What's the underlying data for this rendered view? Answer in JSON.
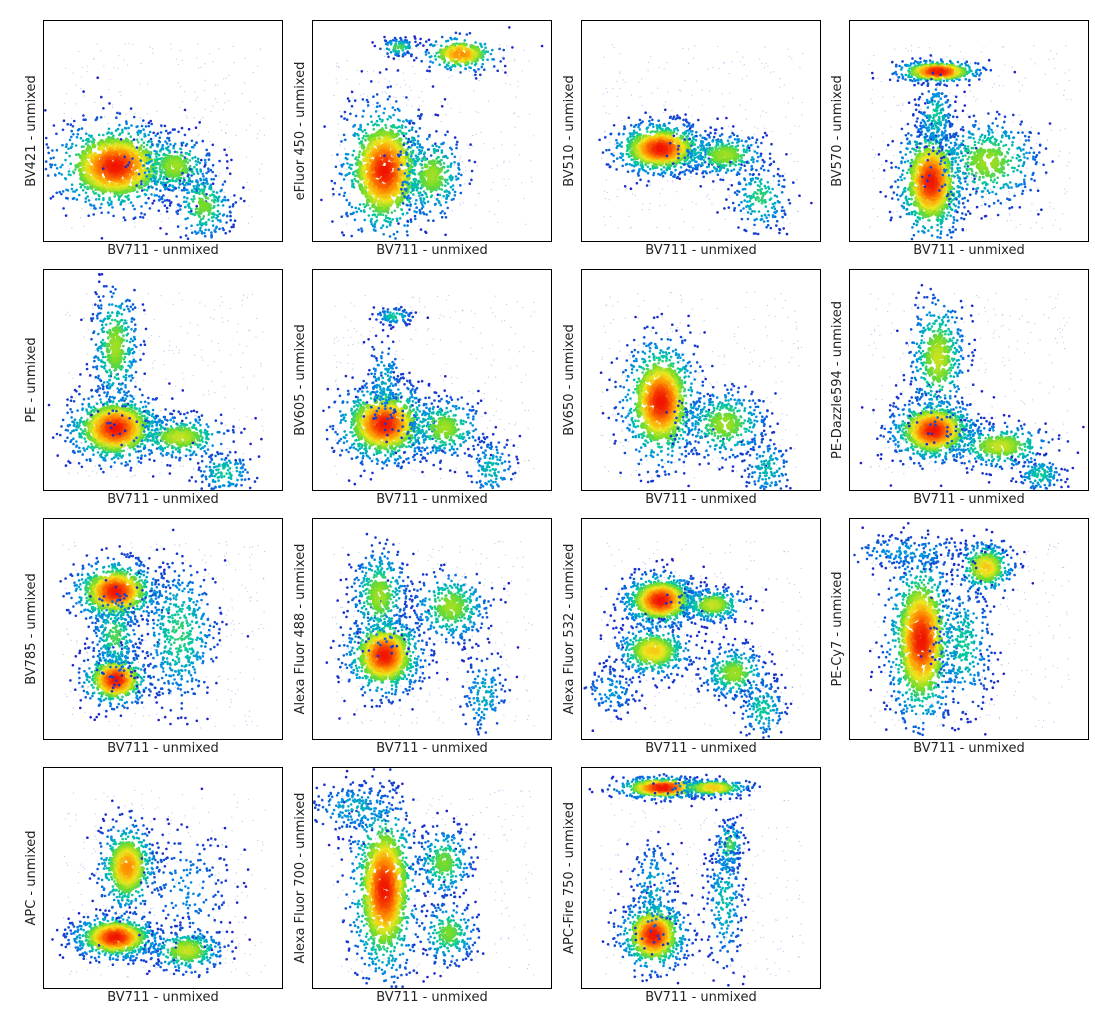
{
  "chart_data": [
    {
      "type": "scatter",
      "xlabel": "BV711 - unmixed",
      "ylabel": "BV421 - unmixed",
      "populations": [
        {
          "x": 0.3,
          "y": 0.66,
          "sx": 0.13,
          "sy": 0.1,
          "n": 900,
          "peak": 1.0
        },
        {
          "x": 0.55,
          "y": 0.66,
          "sx": 0.08,
          "sy": 0.07,
          "n": 320,
          "peak": 0.6
        },
        {
          "x": 0.67,
          "y": 0.84,
          "sx": 0.06,
          "sy": 0.08,
          "n": 260,
          "peak": 0.55
        }
      ]
    },
    {
      "type": "scatter",
      "xlabel": "BV711 - unmixed",
      "ylabel": "eFluor 450 - unmixed",
      "populations": [
        {
          "x": 0.3,
          "y": 0.68,
          "sx": 0.09,
          "sy": 0.15,
          "n": 900,
          "peak": 1.0
        },
        {
          "x": 0.5,
          "y": 0.7,
          "sx": 0.07,
          "sy": 0.1,
          "n": 320,
          "peak": 0.6
        },
        {
          "x": 0.36,
          "y": 0.12,
          "sx": 0.04,
          "sy": 0.02,
          "n": 110,
          "peak": 0.5
        },
        {
          "x": 0.62,
          "y": 0.15,
          "sx": 0.08,
          "sy": 0.04,
          "n": 240,
          "peak": 0.85
        }
      ]
    },
    {
      "type": "scatter",
      "xlabel": "BV711 - unmixed",
      "ylabel": "BV510 - unmixed",
      "populations": [
        {
          "x": 0.33,
          "y": 0.58,
          "sx": 0.1,
          "sy": 0.06,
          "n": 800,
          "peak": 1.0
        },
        {
          "x": 0.6,
          "y": 0.61,
          "sx": 0.09,
          "sy": 0.05,
          "n": 320,
          "peak": 0.6
        },
        {
          "x": 0.75,
          "y": 0.8,
          "sx": 0.06,
          "sy": 0.08,
          "n": 200,
          "peak": 0.45
        }
      ]
    },
    {
      "type": "scatter",
      "xlabel": "BV711 - unmixed",
      "ylabel": "BV570 - unmixed",
      "populations": [
        {
          "x": 0.37,
          "y": 0.23,
          "sx": 0.09,
          "sy": 0.025,
          "n": 400,
          "peak": 1.0
        },
        {
          "x": 0.34,
          "y": 0.73,
          "sx": 0.07,
          "sy": 0.13,
          "n": 850,
          "peak": 1.0
        },
        {
          "x": 0.58,
          "y": 0.64,
          "sx": 0.11,
          "sy": 0.1,
          "n": 420,
          "peak": 0.6
        },
        {
          "x": 0.36,
          "y": 0.43,
          "sx": 0.04,
          "sy": 0.08,
          "n": 200,
          "peak": 0.4
        }
      ]
    },
    {
      "type": "scatter",
      "xlabel": "BV711 - unmixed",
      "ylabel": "PE - unmixed",
      "populations": [
        {
          "x": 0.3,
          "y": 0.72,
          "sx": 0.1,
          "sy": 0.08,
          "n": 850,
          "peak": 1.0
        },
        {
          "x": 0.3,
          "y": 0.35,
          "sx": 0.05,
          "sy": 0.14,
          "n": 380,
          "peak": 0.6
        },
        {
          "x": 0.57,
          "y": 0.76,
          "sx": 0.1,
          "sy": 0.05,
          "n": 320,
          "peak": 0.65
        },
        {
          "x": 0.76,
          "y": 0.92,
          "sx": 0.06,
          "sy": 0.05,
          "n": 150,
          "peak": 0.4
        }
      ]
    },
    {
      "type": "scatter",
      "xlabel": "BV711 - unmixed",
      "ylabel": "BV605 - unmixed",
      "populations": [
        {
          "x": 0.3,
          "y": 0.7,
          "sx": 0.1,
          "sy": 0.09,
          "n": 900,
          "peak": 1.0
        },
        {
          "x": 0.55,
          "y": 0.72,
          "sx": 0.08,
          "sy": 0.07,
          "n": 320,
          "peak": 0.6
        },
        {
          "x": 0.34,
          "y": 0.21,
          "sx": 0.04,
          "sy": 0.02,
          "n": 100,
          "peak": 0.4
        },
        {
          "x": 0.3,
          "y": 0.5,
          "sx": 0.04,
          "sy": 0.1,
          "n": 150,
          "peak": 0.3
        },
        {
          "x": 0.75,
          "y": 0.9,
          "sx": 0.05,
          "sy": 0.07,
          "n": 150,
          "peak": 0.35
        }
      ]
    },
    {
      "type": "scatter",
      "xlabel": "BV711 - unmixed",
      "ylabel": "BV650 - unmixed",
      "populations": [
        {
          "x": 0.33,
          "y": 0.6,
          "sx": 0.08,
          "sy": 0.14,
          "n": 900,
          "peak": 1.0
        },
        {
          "x": 0.6,
          "y": 0.7,
          "sx": 0.09,
          "sy": 0.08,
          "n": 380,
          "peak": 0.6
        },
        {
          "x": 0.78,
          "y": 0.9,
          "sx": 0.05,
          "sy": 0.07,
          "n": 150,
          "peak": 0.35
        }
      ]
    },
    {
      "type": "scatter",
      "xlabel": "BV711 - unmixed",
      "ylabel": "PE-Dazzle594 - unmixed",
      "populations": [
        {
          "x": 0.35,
          "y": 0.73,
          "sx": 0.09,
          "sy": 0.07,
          "n": 800,
          "peak": 1.0
        },
        {
          "x": 0.37,
          "y": 0.4,
          "sx": 0.06,
          "sy": 0.14,
          "n": 420,
          "peak": 0.65
        },
        {
          "x": 0.63,
          "y": 0.8,
          "sx": 0.11,
          "sy": 0.05,
          "n": 340,
          "peak": 0.65
        },
        {
          "x": 0.8,
          "y": 0.93,
          "sx": 0.05,
          "sy": 0.04,
          "n": 150,
          "peak": 0.4
        }
      ]
    },
    {
      "type": "scatter",
      "xlabel": "BV711 - unmixed",
      "ylabel": "BV785 - unmixed",
      "populations": [
        {
          "x": 0.3,
          "y": 0.33,
          "sx": 0.09,
          "sy": 0.07,
          "n": 650,
          "peak": 1.0
        },
        {
          "x": 0.3,
          "y": 0.73,
          "sx": 0.07,
          "sy": 0.06,
          "n": 500,
          "peak": 1.0
        },
        {
          "x": 0.3,
          "y": 0.53,
          "sx": 0.05,
          "sy": 0.09,
          "n": 300,
          "peak": 0.5
        },
        {
          "x": 0.57,
          "y": 0.52,
          "sx": 0.08,
          "sy": 0.16,
          "n": 500,
          "peak": 0.45
        }
      ]
    },
    {
      "type": "scatter",
      "xlabel": "BV711 - unmixed",
      "ylabel": "Alexa Fluor 488 - unmixed",
      "populations": [
        {
          "x": 0.3,
          "y": 0.62,
          "sx": 0.08,
          "sy": 0.09,
          "n": 750,
          "peak": 1.0
        },
        {
          "x": 0.28,
          "y": 0.35,
          "sx": 0.06,
          "sy": 0.11,
          "n": 380,
          "peak": 0.6
        },
        {
          "x": 0.58,
          "y": 0.4,
          "sx": 0.08,
          "sy": 0.08,
          "n": 380,
          "peak": 0.6
        },
        {
          "x": 0.72,
          "y": 0.8,
          "sx": 0.05,
          "sy": 0.1,
          "n": 150,
          "peak": 0.3
        }
      ]
    },
    {
      "type": "scatter",
      "xlabel": "BV711 - unmixed",
      "ylabel": "Alexa Fluor 532 - unmixed",
      "populations": [
        {
          "x": 0.33,
          "y": 0.37,
          "sx": 0.08,
          "sy": 0.06,
          "n": 800,
          "peak": 1.0
        },
        {
          "x": 0.55,
          "y": 0.39,
          "sx": 0.07,
          "sy": 0.04,
          "n": 300,
          "peak": 0.65
        },
        {
          "x": 0.3,
          "y": 0.6,
          "sx": 0.08,
          "sy": 0.06,
          "n": 450,
          "peak": 0.75
        },
        {
          "x": 0.64,
          "y": 0.7,
          "sx": 0.07,
          "sy": 0.06,
          "n": 300,
          "peak": 0.6
        },
        {
          "x": 0.76,
          "y": 0.86,
          "sx": 0.05,
          "sy": 0.07,
          "n": 160,
          "peak": 0.4
        },
        {
          "x": 0.12,
          "y": 0.78,
          "sx": 0.06,
          "sy": 0.06,
          "n": 120,
          "peak": 0.25
        }
      ]
    },
    {
      "type": "scatter",
      "xlabel": "BV711 - unmixed",
      "ylabel": "PE-Cy7 - unmixed",
      "populations": [
        {
          "x": 0.3,
          "y": 0.55,
          "sx": 0.07,
          "sy": 0.19,
          "n": 1000,
          "peak": 1.0
        },
        {
          "x": 0.57,
          "y": 0.22,
          "sx": 0.06,
          "sy": 0.06,
          "n": 320,
          "peak": 0.75
        },
        {
          "x": 0.48,
          "y": 0.57,
          "sx": 0.06,
          "sy": 0.15,
          "n": 320,
          "peak": 0.4
        },
        {
          "x": 0.25,
          "y": 0.15,
          "sx": 0.15,
          "sy": 0.04,
          "n": 180,
          "peak": 0.25
        }
      ]
    },
    {
      "type": "scatter",
      "xlabel": "BV711 - unmixed",
      "ylabel": "APC - unmixed",
      "populations": [
        {
          "x": 0.3,
          "y": 0.77,
          "sx": 0.09,
          "sy": 0.05,
          "n": 700,
          "peak": 1.0
        },
        {
          "x": 0.35,
          "y": 0.45,
          "sx": 0.06,
          "sy": 0.1,
          "n": 500,
          "peak": 0.85
        },
        {
          "x": 0.6,
          "y": 0.83,
          "sx": 0.08,
          "sy": 0.05,
          "n": 320,
          "peak": 0.65
        },
        {
          "x": 0.6,
          "y": 0.55,
          "sx": 0.1,
          "sy": 0.15,
          "n": 180,
          "peak": 0.2
        }
      ]
    },
    {
      "type": "scatter",
      "xlabel": "BV711 - unmixed",
      "ylabel": "Alexa Fluor 700 - unmixed",
      "populations": [
        {
          "x": 0.3,
          "y": 0.55,
          "sx": 0.07,
          "sy": 0.2,
          "n": 1000,
          "peak": 1.0
        },
        {
          "x": 0.55,
          "y": 0.43,
          "sx": 0.06,
          "sy": 0.08,
          "n": 280,
          "peak": 0.55
        },
        {
          "x": 0.57,
          "y": 0.75,
          "sx": 0.06,
          "sy": 0.07,
          "n": 250,
          "peak": 0.55
        },
        {
          "x": 0.18,
          "y": 0.18,
          "sx": 0.1,
          "sy": 0.06,
          "n": 200,
          "peak": 0.3
        }
      ]
    },
    {
      "type": "scatter",
      "xlabel": "BV711 - unmixed",
      "ylabel": "APC-Fire 750 - unmixed",
      "populations": [
        {
          "x": 0.34,
          "y": 0.09,
          "sx": 0.1,
          "sy": 0.025,
          "n": 450,
          "peak": 1.0
        },
        {
          "x": 0.55,
          "y": 0.09,
          "sx": 0.08,
          "sy": 0.02,
          "n": 260,
          "peak": 0.75
        },
        {
          "x": 0.3,
          "y": 0.76,
          "sx": 0.07,
          "sy": 0.08,
          "n": 650,
          "peak": 1.0
        },
        {
          "x": 0.62,
          "y": 0.35,
          "sx": 0.03,
          "sy": 0.06,
          "n": 140,
          "peak": 0.5
        },
        {
          "x": 0.6,
          "y": 0.6,
          "sx": 0.04,
          "sy": 0.16,
          "n": 240,
          "peak": 0.35
        },
        {
          "x": 0.3,
          "y": 0.55,
          "sx": 0.05,
          "sy": 0.12,
          "n": 160,
          "peak": 0.3
        }
      ]
    }
  ]
}
